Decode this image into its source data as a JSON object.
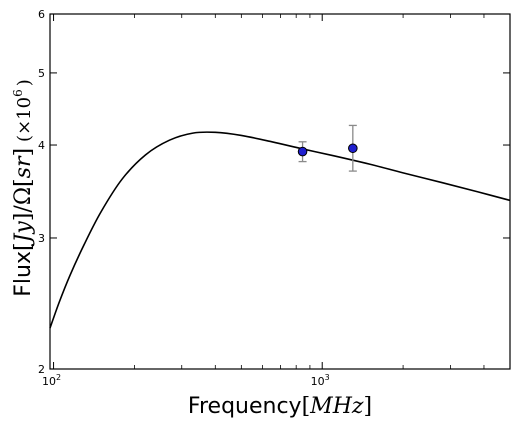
{
  "chart_data": {
    "type": "scatter",
    "title": "",
    "xlabel": {
      "prefix": "Frequency",
      "open": "[",
      "unit": "MHz",
      "close": "]"
    },
    "ylabel": {
      "prefix": "Flux",
      "bracket1_open": "[",
      "unit1": "Jy",
      "bracket1_close": "]",
      "slash": "/",
      "omega": "Ω",
      "bracket2_open": "[",
      "unit2": "sr",
      "bracket2_close": "]",
      "scale_open": "(",
      "scale_times": "×10",
      "scale_exp": "6",
      "scale_close": ")"
    },
    "x_scale": "log",
    "y_scale": "log",
    "xlim": [
      97,
      5000
    ],
    "ylim": [
      2,
      6
    ],
    "grid": false,
    "x_ticks": [
      {
        "value": 100,
        "base": "10",
        "exp": "2"
      },
      {
        "value": 1000,
        "base": "10",
        "exp": "3"
      }
    ],
    "y_ticks": [
      {
        "value": 2,
        "label": "2"
      },
      {
        "value": 3,
        "label": "3"
      },
      {
        "value": 4,
        "label": "4"
      },
      {
        "value": 5,
        "label": "5"
      },
      {
        "value": 6,
        "label": "6"
      }
    ],
    "series": [
      {
        "type": "line",
        "color": "#000000",
        "x": [
          97,
          105,
          115,
          130,
          150,
          180,
          220,
          270,
          330,
          400,
          500,
          650,
          850,
          1100,
          1500,
          2000,
          2800,
          3800,
          5000
        ],
        "y": [
          2.27,
          2.46,
          2.67,
          2.94,
          3.25,
          3.6,
          3.88,
          4.06,
          4.15,
          4.16,
          4.12,
          4.04,
          3.95,
          3.87,
          3.77,
          3.67,
          3.56,
          3.46,
          3.37
        ]
      },
      {
        "type": "errorbar",
        "marker_color": "#1f1fcf",
        "errorbar_color": "#8a8a8a",
        "points": [
          {
            "x": 845,
            "y": 3.92,
            "yerr_low": 0.12,
            "yerr_high": 0.12
          },
          {
            "x": 1300,
            "y": 3.96,
            "yerr_low": 0.27,
            "yerr_high": 0.29
          }
        ]
      }
    ]
  }
}
